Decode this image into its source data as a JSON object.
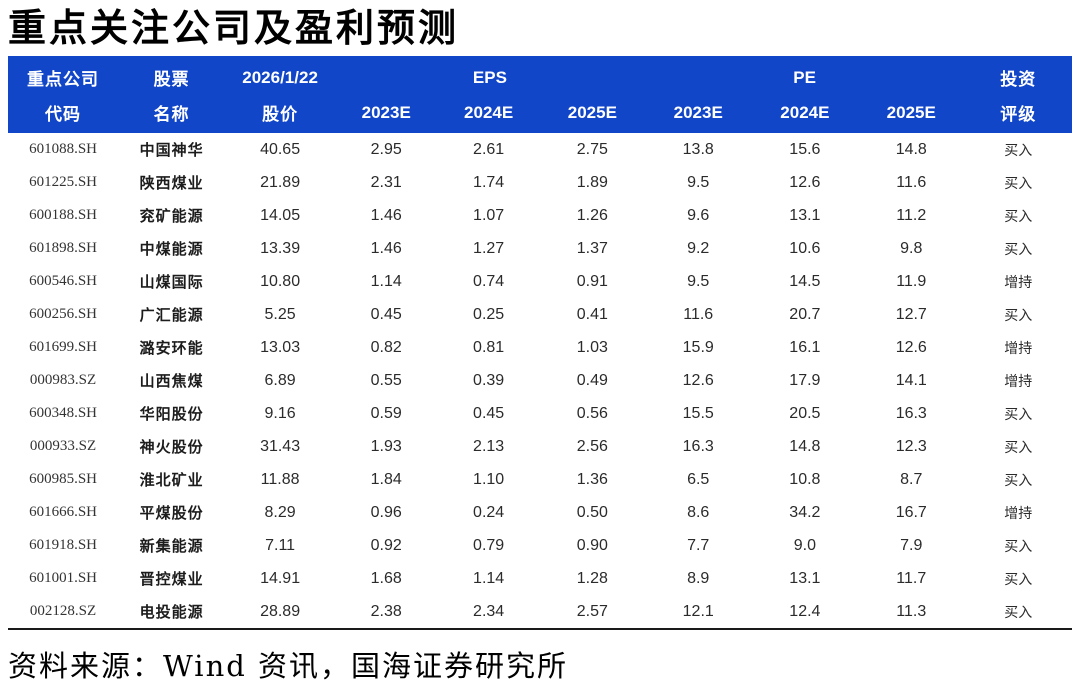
{
  "title": "重点关注公司及盈利预测",
  "source_note": "资料来源：Wind 资讯，国海证券研究所",
  "colors": {
    "header_bg": "#1246C8",
    "header_text": "#FFFFFF",
    "body_text": "#262626",
    "table_bottom_border": "#1A1A1A"
  },
  "table": {
    "header": {
      "company": "重点公司",
      "stock": "股票",
      "date": "2026/1/22",
      "eps_group": "EPS",
      "pe_group": "PE",
      "rating_top": "投资",
      "code": "代码",
      "name": "名称",
      "price": "股价",
      "eps_years": [
        "2023E",
        "2024E",
        "2025E"
      ],
      "pe_years": [
        "2023E",
        "2024E",
        "2025E"
      ],
      "rating_bottom": "评级"
    },
    "rows": [
      {
        "code": "601088.SH",
        "name": "中国神华",
        "price": "40.65",
        "eps": [
          "2.95",
          "2.61",
          "2.75"
        ],
        "pe": [
          "13.8",
          "15.6",
          "14.8"
        ],
        "rating": "买入"
      },
      {
        "code": "601225.SH",
        "name": "陕西煤业",
        "price": "21.89",
        "eps": [
          "2.31",
          "1.74",
          "1.89"
        ],
        "pe": [
          "9.5",
          "12.6",
          "11.6"
        ],
        "rating": "买入"
      },
      {
        "code": "600188.SH",
        "name": "兖矿能源",
        "price": "14.05",
        "eps": [
          "1.46",
          "1.07",
          "1.26"
        ],
        "pe": [
          "9.6",
          "13.1",
          "11.2"
        ],
        "rating": "买入"
      },
      {
        "code": "601898.SH",
        "name": "中煤能源",
        "price": "13.39",
        "eps": [
          "1.46",
          "1.27",
          "1.37"
        ],
        "pe": [
          "9.2",
          "10.6",
          "9.8"
        ],
        "rating": "买入"
      },
      {
        "code": "600546.SH",
        "name": "山煤国际",
        "price": "10.80",
        "eps": [
          "1.14",
          "0.74",
          "0.91"
        ],
        "pe": [
          "9.5",
          "14.5",
          "11.9"
        ],
        "rating": "增持"
      },
      {
        "code": "600256.SH",
        "name": "广汇能源",
        "price": "5.25",
        "eps": [
          "0.45",
          "0.25",
          "0.41"
        ],
        "pe": [
          "11.6",
          "20.7",
          "12.7"
        ],
        "rating": "买入"
      },
      {
        "code": "601699.SH",
        "name": "潞安环能",
        "price": "13.03",
        "eps": [
          "0.82",
          "0.81",
          "1.03"
        ],
        "pe": [
          "15.9",
          "16.1",
          "12.6"
        ],
        "rating": "增持"
      },
      {
        "code": "000983.SZ",
        "name": "山西焦煤",
        "price": "6.89",
        "eps": [
          "0.55",
          "0.39",
          "0.49"
        ],
        "pe": [
          "12.6",
          "17.9",
          "14.1"
        ],
        "rating": "增持"
      },
      {
        "code": "600348.SH",
        "name": "华阳股份",
        "price": "9.16",
        "eps": [
          "0.59",
          "0.45",
          "0.56"
        ],
        "pe": [
          "15.5",
          "20.5",
          "16.3"
        ],
        "rating": "买入"
      },
      {
        "code": "000933.SZ",
        "name": "神火股份",
        "price": "31.43",
        "eps": [
          "1.93",
          "2.13",
          "2.56"
        ],
        "pe": [
          "16.3",
          "14.8",
          "12.3"
        ],
        "rating": "买入"
      },
      {
        "code": "600985.SH",
        "name": "淮北矿业",
        "price": "11.88",
        "eps": [
          "1.84",
          "1.10",
          "1.36"
        ],
        "pe": [
          "6.5",
          "10.8",
          "8.7"
        ],
        "rating": "买入"
      },
      {
        "code": "601666.SH",
        "name": "平煤股份",
        "price": "8.29",
        "eps": [
          "0.96",
          "0.24",
          "0.50"
        ],
        "pe": [
          "8.6",
          "34.2",
          "16.7"
        ],
        "rating": "增持"
      },
      {
        "code": "601918.SH",
        "name": "新集能源",
        "price": "7.11",
        "eps": [
          "0.92",
          "0.79",
          "0.90"
        ],
        "pe": [
          "7.7",
          "9.0",
          "7.9"
        ],
        "rating": "买入"
      },
      {
        "code": "601001.SH",
        "name": "晋控煤业",
        "price": "14.91",
        "eps": [
          "1.68",
          "1.14",
          "1.28"
        ],
        "pe": [
          "8.9",
          "13.1",
          "11.7"
        ],
        "rating": "买入"
      },
      {
        "code": "002128.SZ",
        "name": "电投能源",
        "price": "28.89",
        "eps": [
          "2.38",
          "2.34",
          "2.57"
        ],
        "pe": [
          "12.1",
          "12.4",
          "11.3"
        ],
        "rating": "买入"
      }
    ]
  }
}
